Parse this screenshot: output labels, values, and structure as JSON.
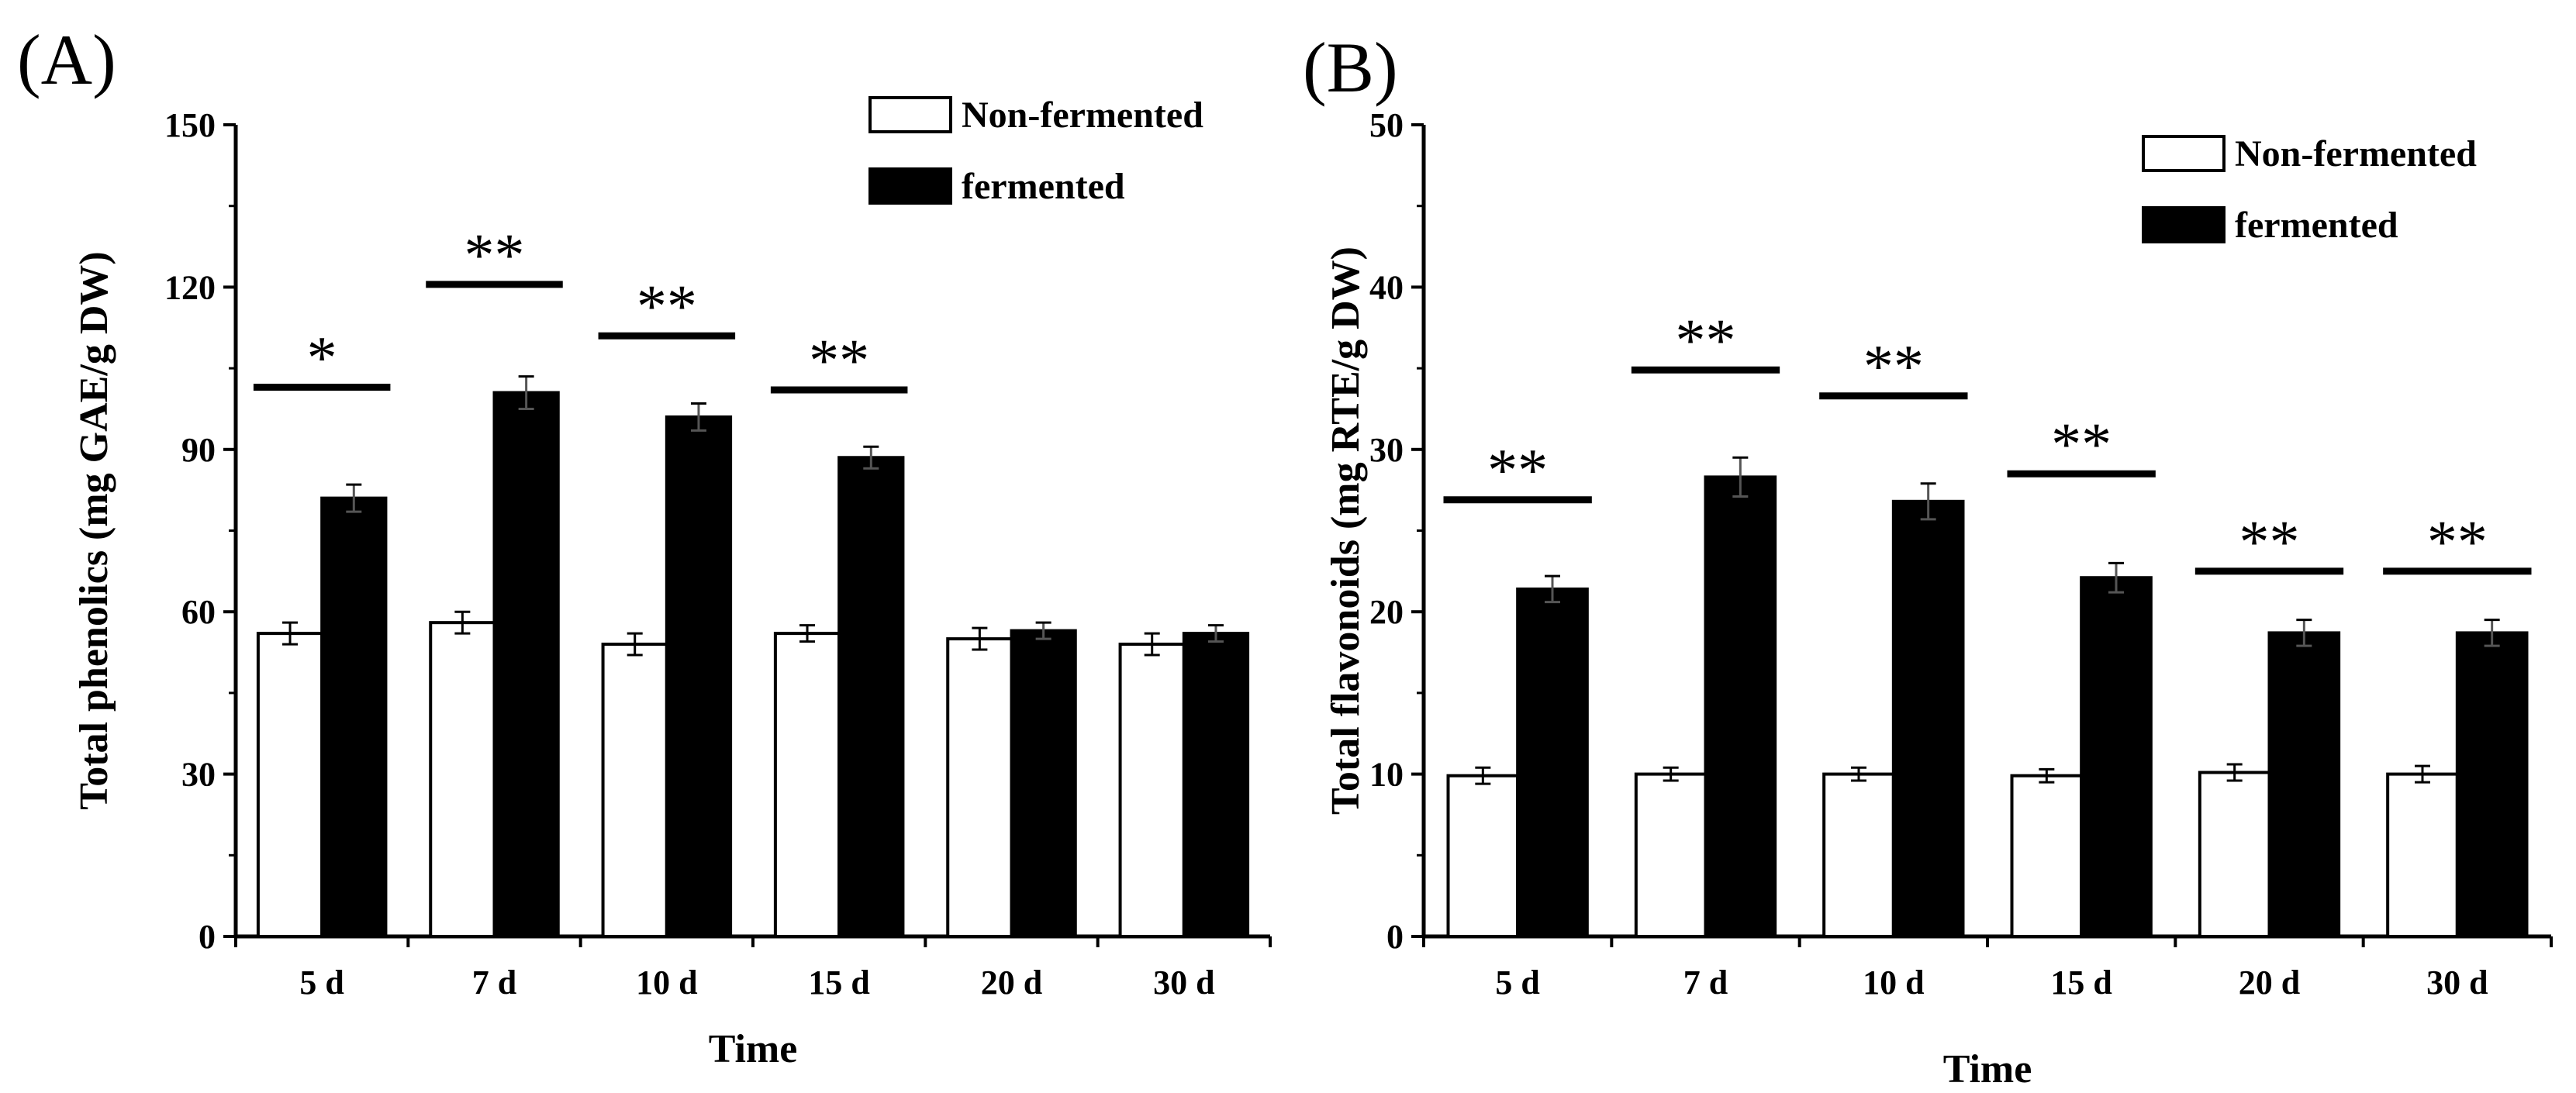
{
  "chart_data": [
    {
      "panel": "(A)",
      "type": "bar",
      "title": "",
      "xlabel": "Time",
      "ylabel": "Total phenolics (mg GAE/g DW)",
      "ylim": [
        0,
        150
      ],
      "yticks": [
        0,
        30,
        60,
        90,
        120,
        150
      ],
      "categories": [
        "5 d",
        "7 d",
        "10 d",
        "15 d",
        "20 d",
        "30 d"
      ],
      "legend_position": "top-right",
      "series": [
        {
          "name": "Non-fermented",
          "color": "#ffffff",
          "values": [
            56,
            58,
            54,
            56,
            55,
            54
          ],
          "errors": [
            2,
            2,
            2,
            1.5,
            2,
            2
          ]
        },
        {
          "name": "fermented",
          "color": "#000000",
          "values": [
            81,
            100.5,
            96,
            88.5,
            56.5,
            56
          ],
          "errors": [
            2.5,
            3,
            2.5,
            2,
            1.5,
            1.5
          ]
        }
      ],
      "significance": [
        {
          "category": "5 d",
          "label": "*",
          "level": 101.5
        },
        {
          "category": "7 d",
          "label": "**",
          "level": 120.5
        },
        {
          "category": "10 d",
          "label": "**",
          "level": 111
        },
        {
          "category": "15 d",
          "label": "**",
          "level": 101
        }
      ]
    },
    {
      "panel": "(B)",
      "type": "bar",
      "title": "",
      "xlabel": "Time",
      "ylabel": "Total flavonoids (mg RTE/g DW)",
      "ylim": [
        0,
        50
      ],
      "yticks": [
        0,
        10,
        20,
        30,
        40,
        50
      ],
      "categories": [
        "5 d",
        "7 d",
        "10 d",
        "15 d",
        "20 d",
        "30 d"
      ],
      "legend_position": "top-right",
      "series": [
        {
          "name": "Non-fermented",
          "color": "#ffffff",
          "values": [
            9.9,
            10,
            10,
            9.9,
            10.1,
            10
          ],
          "errors": [
            0.5,
            0.4,
            0.4,
            0.4,
            0.5,
            0.5
          ]
        },
        {
          "name": "fermented",
          "color": "#000000",
          "values": [
            21.4,
            28.3,
            26.8,
            22.1,
            18.7,
            18.7
          ],
          "errors": [
            0.8,
            1.2,
            1.1,
            0.9,
            0.8,
            0.8
          ]
        }
      ],
      "significance": [
        {
          "category": "5 d",
          "label": "**",
          "level": 26.9
        },
        {
          "category": "7 d",
          "label": "**",
          "level": 34.9
        },
        {
          "category": "10 d",
          "label": "**",
          "level": 33.3
        },
        {
          "category": "15 d",
          "label": "**",
          "level": 28.5
        },
        {
          "category": "20 d",
          "label": "**",
          "level": 22.5
        },
        {
          "category": "30 d",
          "label": "**",
          "level": 22.5
        }
      ]
    }
  ]
}
